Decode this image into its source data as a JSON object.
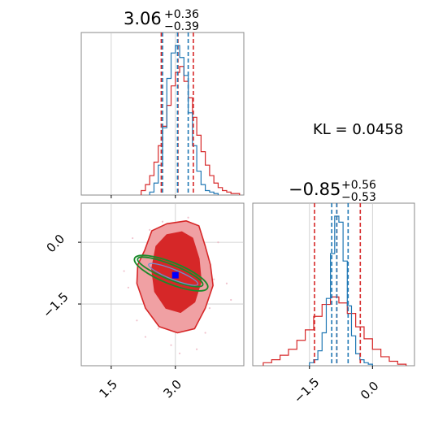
{
  "colors": {
    "samples_a": "#d62728",
    "samples_b": "#1f77b4",
    "contour_fill_outer": "#f0a0a3",
    "contour_fill_inner": "#d62728",
    "ellipse": "#1a8a2a",
    "ellipse_inner": "#6f8fcf",
    "true_value": "#0000ff",
    "grid": "#c8c8c8",
    "frame": "#888888"
  },
  "annotation": {
    "kl_text": "KL = 0.0458"
  },
  "chart_data": [
    {
      "type": "area",
      "panel": "histogram-param-1",
      "title": {
        "median": "3.06",
        "plus": "+0.36",
        "minus": "−0.39"
      },
      "xlim": [
        0.8,
        4.6
      ],
      "x_ticks_in_panel": [
        1.5,
        3.0
      ],
      "grid": true,
      "quantile_lines": {
        "samples_a": [
          2.67,
          3.06,
          3.42
        ],
        "samples_b": [
          2.7,
          3.05,
          3.3
        ]
      },
      "series": [
        {
          "color_key": "samples_a",
          "bin_edges": [
            2.2,
            2.3,
            2.4,
            2.5,
            2.6,
            2.7,
            2.8,
            2.9,
            3.0,
            3.1,
            3.2,
            3.3,
            3.4,
            3.5,
            3.6,
            3.7,
            3.8,
            3.9,
            4.0,
            4.1,
            4.2,
            4.3,
            4.4,
            4.5
          ],
          "values": [
            0.03,
            0.07,
            0.13,
            0.22,
            0.33,
            0.46,
            0.6,
            0.73,
            0.82,
            0.86,
            0.76,
            0.65,
            0.52,
            0.4,
            0.29,
            0.2,
            0.13,
            0.08,
            0.05,
            0.03,
            0.02,
            0.01,
            0.01
          ]
        },
        {
          "color_key": "samples_b",
          "bin_edges": [
            2.4,
            2.5,
            2.6,
            2.7,
            2.8,
            2.9,
            3.0,
            3.1,
            3.2,
            3.3,
            3.4,
            3.5,
            3.6,
            3.7,
            3.8,
            3.9,
            4.0
          ],
          "values": [
            0.02,
            0.08,
            0.2,
            0.45,
            0.78,
            0.95,
            1.0,
            0.92,
            0.8,
            0.55,
            0.33,
            0.16,
            0.07,
            0.03,
            0.02,
            0.01
          ]
        }
      ]
    },
    {
      "type": "area",
      "panel": "histogram-param-2",
      "title": {
        "median": "−0.85",
        "plus": "+0.56",
        "minus": "−0.53"
      },
      "xlim": [
        -2.85,
        1.0
      ],
      "x_ticks": [
        -1.5,
        0.0
      ],
      "x_tick_labels": [
        "−1.5",
        "0.0"
      ],
      "grid": true,
      "quantile_lines": {
        "samples_a": [
          -1.38,
          -0.85,
          -0.29
        ],
        "samples_b": [
          -0.97,
          -0.85,
          -0.58
        ]
      },
      "series": [
        {
          "color_key": "samples_a",
          "bin_edges": [
            -2.6,
            -2.4,
            -2.2,
            -2.0,
            -1.8,
            -1.6,
            -1.4,
            -1.2,
            -1.0,
            -0.8,
            -0.6,
            -0.4,
            -0.2,
            0.0,
            0.2,
            0.4,
            0.6,
            0.8
          ],
          "values": [
            0.02,
            0.04,
            0.07,
            0.11,
            0.17,
            0.24,
            0.33,
            0.41,
            0.46,
            0.42,
            0.35,
            0.26,
            0.18,
            0.11,
            0.06,
            0.03,
            0.01
          ]
        },
        {
          "color_key": "samples_b",
          "bin_edges": [
            -1.5,
            -1.4,
            -1.3,
            -1.2,
            -1.1,
            -1.0,
            -0.9,
            -0.8,
            -0.7,
            -0.6,
            -0.5,
            -0.4,
            -0.3,
            -0.2,
            -0.1,
            0.0
          ],
          "values": [
            0.02,
            0.04,
            0.1,
            0.22,
            0.45,
            0.75,
            1.0,
            0.96,
            0.7,
            0.4,
            0.2,
            0.08,
            0.04,
            0.02,
            0.01
          ]
        }
      ]
    },
    {
      "type": "scatter",
      "panel": "joint-posterior",
      "xlim": [
        0.8,
        4.6
      ],
      "ylim": [
        -3.0,
        0.95
      ],
      "x_ticks": [
        1.5,
        3.0
      ],
      "x_tick_labels": [
        "1.5",
        "3.0"
      ],
      "y_ticks": [
        0.0,
        -1.5
      ],
      "y_tick_labels": [
        "0.0",
        "−1.5"
      ],
      "grid": true,
      "points": [
        [
          2.4,
          0.3
        ],
        [
          2.2,
          -0.5
        ],
        [
          3.6,
          0.2
        ],
        [
          3.9,
          -0.9
        ],
        [
          2.6,
          -2.1
        ],
        [
          3.7,
          -2.2
        ],
        [
          1.9,
          -1.1
        ],
        [
          4.2,
          -1.0
        ],
        [
          3.3,
          0.6
        ],
        [
          2.1,
          -1.9
        ],
        [
          3.8,
          -1.6
        ],
        [
          2.9,
          -2.5
        ],
        [
          4.0,
          0.0
        ],
        [
          2.3,
          -2.3
        ],
        [
          3.5,
          -2.6
        ],
        [
          1.8,
          -0.7
        ],
        [
          4.3,
          -1.4
        ],
        [
          2.7,
          0.5
        ],
        [
          3.1,
          -2.7
        ],
        [
          2.0,
          0.1
        ]
      ],
      "true_value": {
        "x": 3.0,
        "y": -0.8
      },
      "contour_levels": [
        {
          "color_key": "contour_fill_outer",
          "points": [
            [
              2.28,
              -0.2
            ],
            [
              2.45,
              0.28
            ],
            [
              2.8,
              0.45
            ],
            [
              3.25,
              0.52
            ],
            [
              3.55,
              0.4
            ],
            [
              3.7,
              -0.1
            ],
            [
              3.82,
              -0.55
            ],
            [
              3.88,
              -1.05
            ],
            [
              3.7,
              -1.6
            ],
            [
              3.45,
              -2.1
            ],
            [
              3.05,
              -2.2
            ],
            [
              2.62,
              -2.05
            ],
            [
              2.3,
              -1.6
            ],
            [
              2.1,
              -1.0
            ],
            [
              2.12,
              -0.55
            ]
          ]
        },
        {
          "color_key": "contour_fill_inner",
          "points": [
            [
              2.55,
              -0.1
            ],
            [
              2.8,
              0.18
            ],
            [
              3.15,
              0.25
            ],
            [
              3.4,
              0.1
            ],
            [
              3.55,
              -0.4
            ],
            [
              3.6,
              -0.95
            ],
            [
              3.45,
              -1.45
            ],
            [
              3.12,
              -1.7
            ],
            [
              2.78,
              -1.6
            ],
            [
              2.52,
              -1.2
            ],
            [
              2.45,
              -0.65
            ]
          ]
        }
      ],
      "ellipses": [
        {
          "cx": 2.9,
          "cy": -0.75,
          "rx": 0.92,
          "ry": 0.26,
          "angle_deg": 22
        },
        {
          "cx": 2.88,
          "cy": -0.72,
          "rx": 0.82,
          "ry": 0.18,
          "angle_deg": 22
        },
        {
          "cx": 2.95,
          "cy": -0.78,
          "rx": 0.62,
          "ry": 0.12,
          "angle_deg": 22
        }
      ]
    }
  ]
}
